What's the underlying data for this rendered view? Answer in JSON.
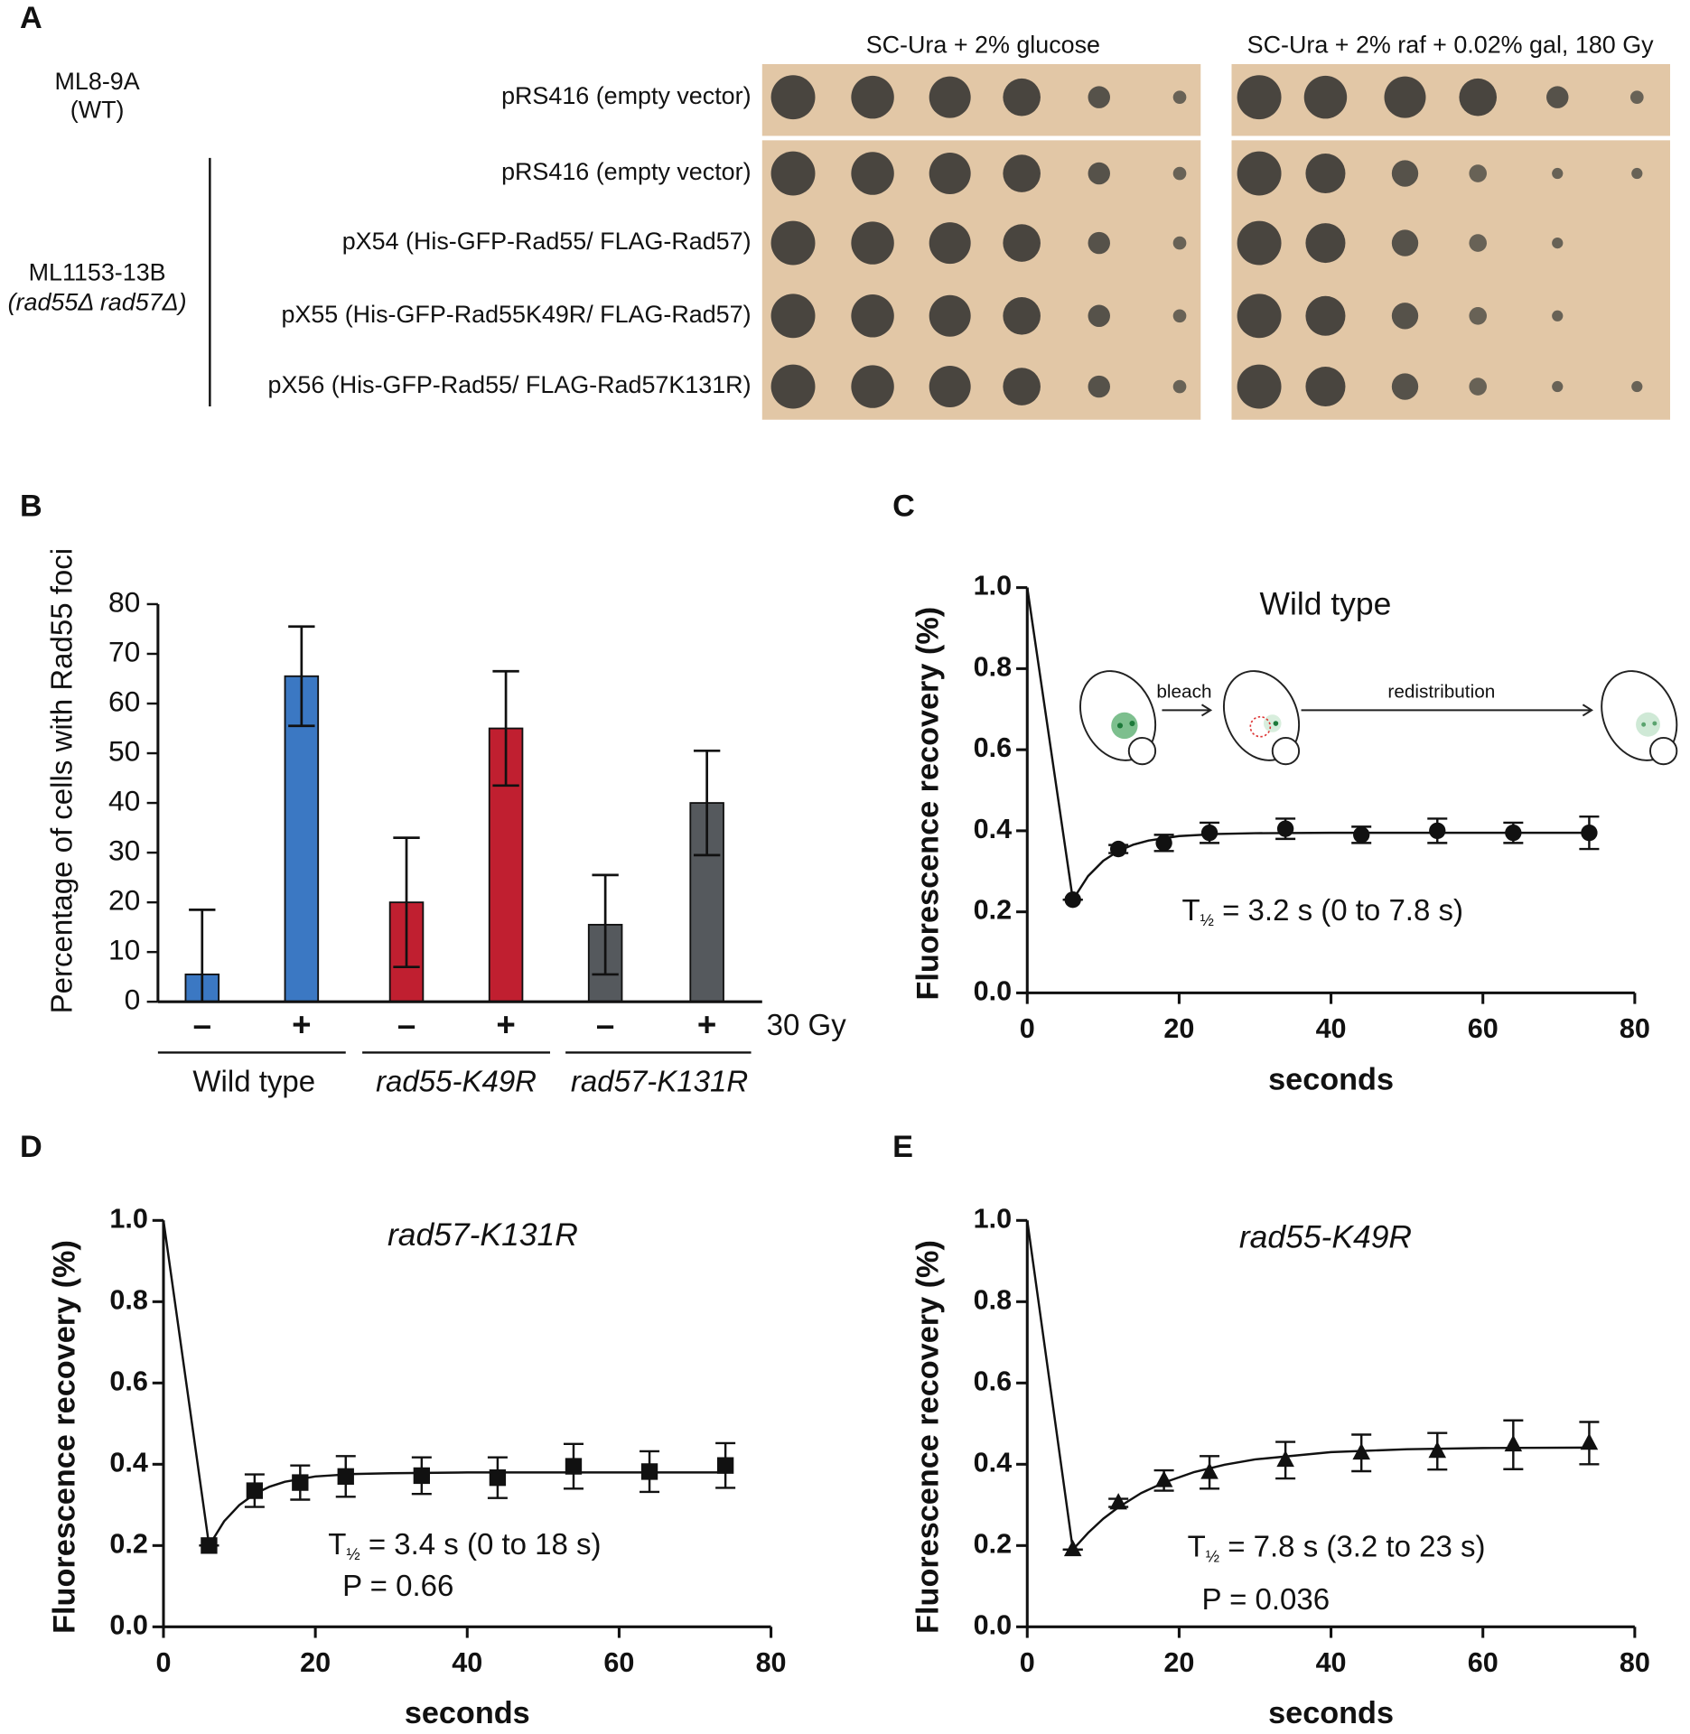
{
  "panel_labels": [
    "A",
    "B",
    "C",
    "D",
    "E"
  ],
  "panel_a": {
    "plate_titles": [
      "SC-Ura + 2% glucose",
      "SC-Ura + 2% raf + 0.02% gal, 180 Gy"
    ],
    "strains": [
      {
        "name": "ML8-9A",
        "genotype": "(WT)"
      },
      {
        "name": "ML1153-13B",
        "genotype": "(rad55Δ rad57Δ)"
      }
    ],
    "plasmids": [
      "pRS416 (empty vector)",
      "pRS416 (empty vector)",
      "pX54 (His-GFP-Rad55/ FLAG-Rad57)",
      "pX55 (His-GFP-Rad55K49R/ FLAG-Rad57)",
      "pX56 (His-GFP-Rad55/ FLAG-Rad57K131R)"
    ]
  },
  "chart_data": [
    {
      "type": "bar",
      "ylabel": "Percentage of cells with Rad55 foci",
      "categories": [
        "–",
        "+",
        "–",
        "+",
        "–",
        "+"
      ],
      "values": [
        5.5,
        65.5,
        20,
        55,
        15.5,
        40
      ],
      "errors": [
        13,
        10,
        13,
        11.5,
        10,
        10.5
      ],
      "colors": [
        "#3b78c3",
        "#3b78c3",
        "#c01f30",
        "#c01f30",
        "#55595d",
        "#55595d"
      ],
      "groups": [
        {
          "name": "Wild type",
          "italic": false
        },
        {
          "name": "rad55-K49R",
          "italic": true
        },
        {
          "name": "rad57-K131R",
          "italic": true
        }
      ],
      "x_annotation": "30 Gy",
      "ylim": [
        0,
        80
      ],
      "yticks": [
        0,
        10,
        20,
        30,
        40,
        50,
        60,
        70,
        80
      ]
    },
    {
      "type": "scatter",
      "title": "Wild type",
      "title_italic": false,
      "marker": "circle",
      "xlabel": "seconds",
      "ylabel": "Fluorescence recovery (%)",
      "x": [
        6,
        12,
        18,
        24,
        34,
        44,
        54,
        64,
        74
      ],
      "values": [
        0.23,
        0.355,
        0.37,
        0.395,
        0.405,
        0.39,
        0.4,
        0.395,
        0.395
      ],
      "errors": [
        0,
        0.01,
        0.02,
        0.025,
        0.025,
        0.02,
        0.03,
        0.025,
        0.04
      ],
      "line": {
        "x": [
          0,
          6,
          8,
          10,
          12,
          14,
          16,
          20,
          25,
          30,
          40,
          50,
          60,
          74
        ],
        "values": [
          1.0,
          0.23,
          0.288,
          0.326,
          0.35,
          0.366,
          0.376,
          0.387,
          0.392,
          0.394,
          0.395,
          0.395,
          0.395,
          0.395
        ]
      },
      "annotation": {
        "symbol": "T",
        "subscript": "½",
        "text": " = 3.2 s (0 to 7.8 s)"
      },
      "inset_labels": [
        "bleach",
        "redistribution"
      ],
      "xlim": [
        0,
        80
      ],
      "xticks": [
        0,
        20,
        40,
        60,
        80
      ],
      "ylim": [
        0,
        1
      ],
      "yticks": [
        {
          "value": 0,
          "label": "0.0"
        },
        0.2,
        0.4,
        0.6,
        0.8,
        {
          "value": 1,
          "label": "1.0"
        }
      ]
    },
    {
      "type": "scatter",
      "title": "rad57-K131R",
      "title_italic": true,
      "marker": "square",
      "xlabel": "seconds",
      "ylabel": "Fluorescence recovery (%)",
      "x": [
        6,
        12,
        18,
        24,
        34,
        44,
        54,
        64,
        74
      ],
      "values": [
        0.2,
        0.335,
        0.355,
        0.37,
        0.372,
        0.367,
        0.395,
        0.382,
        0.397
      ],
      "errors": [
        0,
        0.04,
        0.042,
        0.05,
        0.045,
        0.05,
        0.055,
        0.05,
        0.055
      ],
      "line": {
        "x": [
          0,
          6,
          8,
          10,
          12,
          14,
          16,
          20,
          25,
          30,
          40,
          50,
          60,
          74
        ],
        "values": [
          1.0,
          0.2,
          0.26,
          0.3,
          0.327,
          0.345,
          0.357,
          0.37,
          0.376,
          0.378,
          0.38,
          0.38,
          0.38,
          0.38
        ]
      },
      "annotation": {
        "symbol": "T",
        "subscript": "½",
        "text": " = 3.4 s (0 to 18 s)"
      },
      "p_value": "P = 0.66",
      "xlim": [
        0,
        80
      ],
      "xticks": [
        0,
        20,
        40,
        60,
        80
      ],
      "ylim": [
        0,
        1
      ],
      "yticks": [
        {
          "value": 0,
          "label": "0.0"
        },
        0.2,
        0.4,
        0.6,
        0.8,
        {
          "value": 1,
          "label": "1.0"
        }
      ]
    },
    {
      "type": "scatter",
      "title": "rad55-K49R",
      "title_italic": true,
      "marker": "triangle",
      "xlabel": "seconds",
      "ylabel": "Fluorescence recovery (%)",
      "x": [
        6,
        12,
        18,
        24,
        34,
        44,
        54,
        64,
        74
      ],
      "values": [
        0.19,
        0.305,
        0.36,
        0.38,
        0.41,
        0.428,
        0.432,
        0.448,
        0.452
      ],
      "errors": [
        0,
        0.01,
        0.025,
        0.04,
        0.045,
        0.045,
        0.045,
        0.06,
        0.052
      ],
      "line": {
        "x": [
          0,
          6,
          8,
          10,
          12,
          15,
          18,
          22,
          26,
          30,
          40,
          50,
          60,
          74
        ],
        "values": [
          1.0,
          0.19,
          0.231,
          0.266,
          0.294,
          0.329,
          0.355,
          0.381,
          0.399,
          0.412,
          0.43,
          0.437,
          0.44,
          0.441
        ]
      },
      "annotation": {
        "symbol": "T",
        "subscript": "½",
        "text": " = 7.8 s (3.2 to 23 s)"
      },
      "p_value": "P = 0.036",
      "xlim": [
        0,
        80
      ],
      "xticks": [
        0,
        20,
        40,
        60,
        80
      ],
      "ylim": [
        0,
        1
      ],
      "yticks": [
        {
          "value": 0,
          "label": "0.0"
        },
        0.2,
        0.4,
        0.6,
        0.8,
        {
          "value": 1,
          "label": "1.0"
        }
      ]
    }
  ]
}
